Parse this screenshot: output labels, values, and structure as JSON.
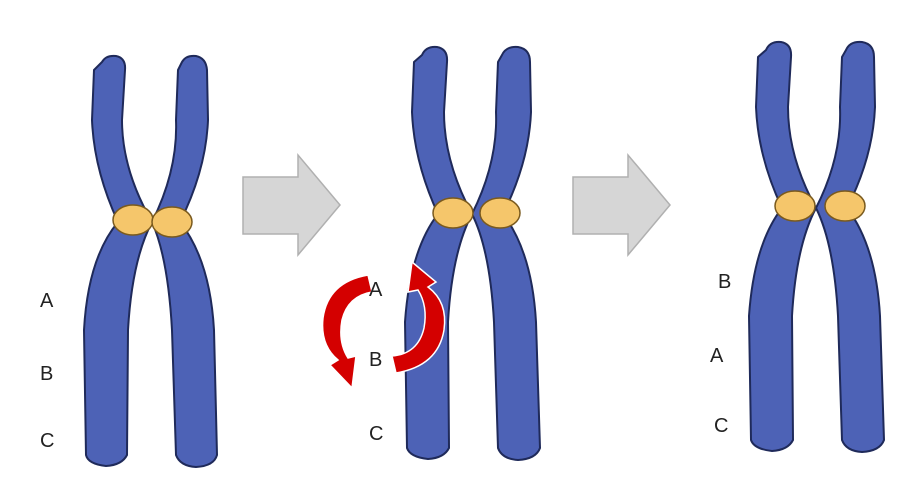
{
  "colors": {
    "chromatid_fill": "#4d62b6",
    "chromatid_stroke": "#1f2a5a",
    "centromere_fill": "#f5c66b",
    "centromere_stroke": "#7a5a1e",
    "arrow_fill": "#d6d6d6",
    "arrow_stroke": "#b0b0b0",
    "swap_arrow_fill": "#d40000"
  },
  "stages": [
    {
      "labels": [
        "A",
        "B",
        "C"
      ]
    },
    {
      "labels": [
        "A",
        "B",
        "C"
      ]
    },
    {
      "labels": [
        "B",
        "A",
        "C"
      ]
    }
  ]
}
